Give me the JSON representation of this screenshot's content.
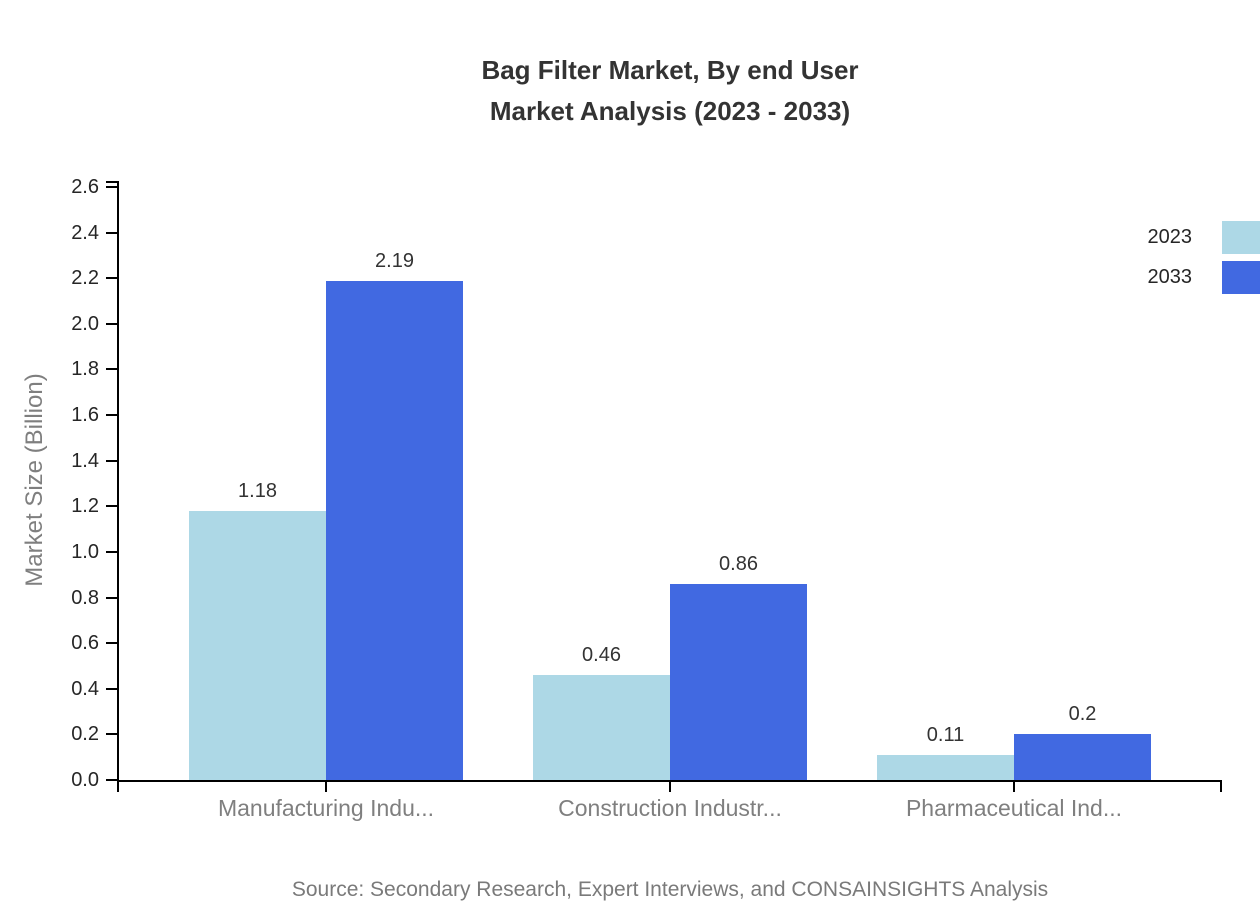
{
  "title": {
    "line1": "Bag Filter Market, By end User",
    "line2": "Market Analysis (2023 - 2033)"
  },
  "y_axis_title": "Market Size (Billion)",
  "source": "Source: Secondary Research, Expert Interviews, and CONSAINSIGHTS Analysis",
  "legend": {
    "items": [
      {
        "label": "2023",
        "color": "#ADD8E6"
      },
      {
        "label": "2033",
        "color": "#4169E1"
      }
    ]
  },
  "chart_data": {
    "type": "bar",
    "title": "Bag Filter Market, By end User Market Analysis (2023 - 2033)",
    "categories": [
      "Manufacturing Indu...",
      "Construction Industr...",
      "Pharmaceutical Ind..."
    ],
    "series": [
      {
        "name": "2023",
        "color": "#ADD8E6",
        "values": [
          1.18,
          0.46,
          0.11
        ],
        "labels": [
          "1.18",
          "0.46",
          "0.11"
        ]
      },
      {
        "name": "2033",
        "color": "#4169E1",
        "values": [
          2.19,
          0.86,
          0.2
        ],
        "labels": [
          "2.19",
          "0.86",
          "0.2"
        ]
      }
    ],
    "xlabel": "",
    "ylabel": "Market Size (Billion)",
    "ylim": [
      0,
      2.6
    ],
    "ytick_step": 0.2,
    "ytick_labels": [
      "0.0",
      "0.2",
      "0.4",
      "0.6",
      "0.8",
      "1.0",
      "1.2",
      "1.4",
      "1.6",
      "1.8",
      "2.0",
      "2.2",
      "2.4",
      "2.6"
    ],
    "grid": false,
    "legend_position": "top-right"
  }
}
